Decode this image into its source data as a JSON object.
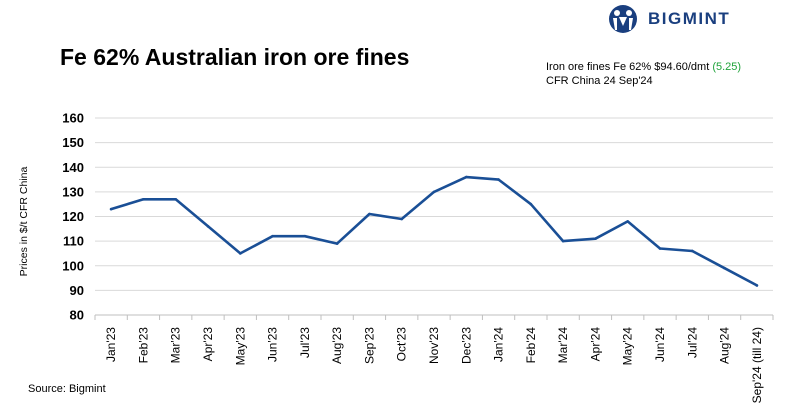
{
  "logo": {
    "text": "BIGMINT",
    "brand_color": "#1a3f7f"
  },
  "header": {
    "title": "Fe 62% Australian iron ore fines"
  },
  "price_note": {
    "prefix": "Iron ore fines Fe 62% $94.60/dmt ",
    "change_open": "(",
    "change": "5.25",
    "change_close": ")",
    "line2": "CFR China 24 Sep'24",
    "change_color": "#1fa33a"
  },
  "footer": {
    "source": "Source: Bigmint"
  },
  "chart_data": {
    "type": "line",
    "title": "Fe 62% Australian iron ore fines",
    "xlabel": "",
    "ylabel": "Prices in $/t CFR China",
    "ylim": [
      80,
      160
    ],
    "yticks": [
      80,
      90,
      100,
      110,
      120,
      130,
      140,
      150,
      160
    ],
    "grid": true,
    "line_color": "#1a4f96",
    "categories": [
      "Jan'23",
      "Feb'23",
      "Mar'23",
      "Apr'23",
      "May'23",
      "Jun'23",
      "Jul'23",
      "Aug'23",
      "Sep'23",
      "Oct'23",
      "Nov'23",
      "Dec'23",
      "Jan'24",
      "Feb'24",
      "Mar'24",
      "Apr'24",
      "May'24",
      "Jun'24",
      "Jul'24",
      "Aug'24",
      "Sep'24 (till 24)"
    ],
    "series": [
      {
        "name": "Fe 62% Australian iron ore fines",
        "values": [
          123,
          127,
          127,
          116,
          105,
          112,
          112,
          109,
          121,
          119,
          130,
          136,
          135,
          125,
          110,
          111,
          118,
          107,
          106,
          99,
          92
        ]
      }
    ]
  }
}
